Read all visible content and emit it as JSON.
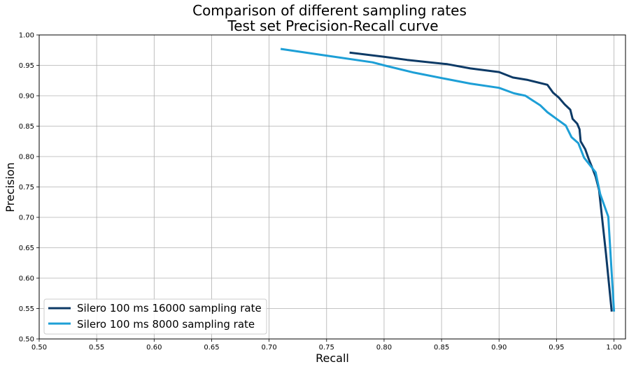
{
  "chart_data": {
    "type": "line",
    "title": "Comparison of different sampling rates",
    "subtitle": "Test set Precision-Recall curve",
    "xlabel": "Recall",
    "ylabel": "Precision",
    "xlim": [
      0.5,
      1.01
    ],
    "ylim": [
      0.5,
      1.0
    ],
    "xticks": [
      0.5,
      0.55,
      0.6,
      0.65,
      0.7,
      0.75,
      0.8,
      0.85,
      0.9,
      0.95,
      1.0
    ],
    "xtick_labels": [
      "0.50",
      "0.55",
      "0.60",
      "0.65",
      "0.70",
      "0.75",
      "0.80",
      "0.85",
      "0.90",
      "0.95",
      "1.00"
    ],
    "yticks": [
      0.5,
      0.55,
      0.6,
      0.65,
      0.7,
      0.75,
      0.8,
      0.85,
      0.9,
      0.95,
      1.0
    ],
    "ytick_labels": [
      "0.50",
      "0.55",
      "0.60",
      "0.65",
      "0.70",
      "0.75",
      "0.80",
      "0.85",
      "0.90",
      "0.95",
      "1.00"
    ],
    "grid": true,
    "legend_position": "lower-left",
    "series": [
      {
        "name": "Silero 100 ms 16000 sampling rate",
        "color": "#0d3a66",
        "points": [
          [
            0.77,
            0.971
          ],
          [
            0.8,
            0.964
          ],
          [
            0.82,
            0.959
          ],
          [
            0.855,
            0.952
          ],
          [
            0.875,
            0.945
          ],
          [
            0.9,
            0.939
          ],
          [
            0.912,
            0.93
          ],
          [
            0.925,
            0.926
          ],
          [
            0.942,
            0.918
          ],
          [
            0.947,
            0.905
          ],
          [
            0.952,
            0.897
          ],
          [
            0.957,
            0.886
          ],
          [
            0.962,
            0.877
          ],
          [
            0.964,
            0.862
          ],
          [
            0.968,
            0.854
          ],
          [
            0.97,
            0.845
          ],
          [
            0.971,
            0.825
          ],
          [
            0.975,
            0.812
          ],
          [
            0.978,
            0.796
          ],
          [
            0.981,
            0.782
          ],
          [
            0.984,
            0.767
          ],
          [
            0.987,
            0.745
          ],
          [
            0.993,
            0.64
          ],
          [
            0.998,
            0.545
          ]
        ]
      },
      {
        "name": "Silero 100 ms 8000 sampling rate",
        "color": "#1d9fd6",
        "points": [
          [
            0.71,
            0.977
          ],
          [
            0.75,
            0.966
          ],
          [
            0.79,
            0.955
          ],
          [
            0.8,
            0.95
          ],
          [
            0.826,
            0.938
          ],
          [
            0.853,
            0.928
          ],
          [
            0.875,
            0.92
          ],
          [
            0.9,
            0.913
          ],
          [
            0.913,
            0.904
          ],
          [
            0.923,
            0.9
          ],
          [
            0.936,
            0.884
          ],
          [
            0.942,
            0.873
          ],
          [
            0.95,
            0.862
          ],
          [
            0.958,
            0.851
          ],
          [
            0.963,
            0.832
          ],
          [
            0.969,
            0.822
          ],
          [
            0.974,
            0.798
          ],
          [
            0.984,
            0.774
          ],
          [
            0.988,
            0.738
          ],
          [
            0.995,
            0.701
          ],
          [
            1.0,
            0.545
          ]
        ]
      }
    ]
  }
}
